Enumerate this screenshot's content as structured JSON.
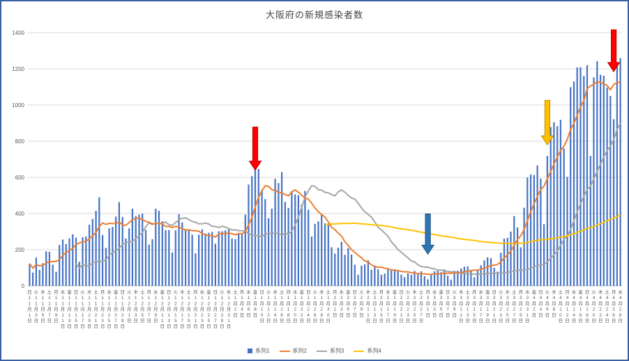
{
  "chart_data": {
    "type": "bar",
    "title": "大阪府の新規感染者数",
    "xlabel": "",
    "ylabel": "",
    "ylim": [
      0,
      1400
    ],
    "y_ticks": [
      0,
      200,
      400,
      600,
      800,
      1000,
      1200,
      1400
    ],
    "grid": "horizontal",
    "legend_position": "bottom",
    "axis_color": "#595959",
    "gridline_color": "#D9D9D9",
    "axisline_color": "#BFBFBF",
    "x": {
      "unit": "day",
      "tick_every": 2,
      "weekdays": [
        "日",
        "月",
        "火",
        "水",
        "木",
        "金",
        "土"
      ],
      "first_weekday_index": 0,
      "month_suffix": "月",
      "day_suffix": "日",
      "dates": [
        "11/1",
        "11/2",
        "11/3",
        "11/4",
        "11/5",
        "11/6",
        "11/7",
        "11/8",
        "11/9",
        "11/10",
        "11/11",
        "11/12",
        "11/13",
        "11/14",
        "11/15",
        "11/16",
        "11/17",
        "11/18",
        "11/19",
        "11/20",
        "11/21",
        "11/22",
        "11/23",
        "11/24",
        "11/25",
        "11/26",
        "11/27",
        "11/28",
        "11/29",
        "11/30",
        "12/1",
        "12/2",
        "12/3",
        "12/4",
        "12/5",
        "12/6",
        "12/7",
        "12/8",
        "12/9",
        "12/10",
        "12/11",
        "12/12",
        "12/13",
        "12/14",
        "12/15",
        "12/16",
        "12/17",
        "12/18",
        "12/19",
        "12/20",
        "12/21",
        "12/22",
        "12/23",
        "12/24",
        "12/25",
        "12/26",
        "12/27",
        "12/28",
        "12/29",
        "12/30",
        "12/31",
        "1/1",
        "1/2",
        "1/3",
        "1/4",
        "1/5",
        "1/6",
        "1/7",
        "1/8",
        "1/9",
        "1/10",
        "1/11",
        "1/12",
        "1/13",
        "1/14",
        "1/15",
        "1/16",
        "1/17",
        "1/18",
        "1/19",
        "1/20",
        "1/21",
        "1/22",
        "1/23",
        "1/24",
        "1/25",
        "1/26",
        "1/27",
        "1/28",
        "1/29",
        "1/30",
        "1/31",
        "2/1",
        "2/2",
        "2/3",
        "2/4",
        "2/5",
        "2/6",
        "2/7",
        "2/8",
        "2/9",
        "2/10",
        "2/11",
        "2/12",
        "2/13",
        "2/14",
        "2/15",
        "2/16",
        "2/17",
        "2/18",
        "2/19",
        "2/20",
        "2/21",
        "2/22",
        "2/23",
        "2/24",
        "2/25",
        "2/26",
        "2/27",
        "2/28",
        "3/1",
        "3/2",
        "3/3",
        "3/4",
        "3/5",
        "3/6",
        "3/7",
        "3/8",
        "3/9",
        "3/10",
        "3/11",
        "3/12",
        "3/13",
        "3/14",
        "3/15",
        "3/16",
        "3/17",
        "3/18",
        "3/19",
        "3/20",
        "3/21",
        "3/22",
        "3/23",
        "3/24",
        "3/25",
        "3/26",
        "3/27",
        "3/28",
        "3/29",
        "3/30",
        "3/31",
        "4/1",
        "4/2",
        "4/3",
        "4/4",
        "4/5",
        "4/6",
        "4/7",
        "4/8",
        "4/9",
        "4/10",
        "4/11",
        "4/12",
        "4/13",
        "4/14",
        "4/15",
        "4/16",
        "4/17",
        "4/18",
        "4/19",
        "4/20",
        "4/21",
        "4/22",
        "4/23",
        "4/24",
        "4/25",
        "4/26",
        "4/27",
        "4/28"
      ]
    },
    "series": [
      {
        "name": "系列1",
        "type": "bar",
        "color": "#4472C4",
        "values": [
          123,
          74,
          156,
          88,
          125,
          191,
          189,
          117,
          78,
          226,
          256,
          231,
          263,
          285,
          266,
          133,
          269,
          273,
          338,
          370,
          415,
          490,
          281,
          210,
          318,
          326,
          383,
          463,
          381,
          262,
          318,
          427,
          386,
          394,
          399,
          310,
          228,
          258,
          427,
          415,
          357,
          308,
          309,
          185,
          306,
          396,
          351,
          309,
          311,
          283,
          180,
          283,
          312,
          289,
          294,
          299,
          233,
          302,
          302,
          307,
          313,
          262,
          258,
          286,
          286,
          394,
          560,
          607,
          654,
          647,
          532,
          480,
          374,
          427,
          592,
          568,
          629,
          464,
          431,
          525,
          506,
          501,
          450,
          525,
          421,
          273,
          343,
          357,
          397,
          346,
          338,
          214,
          178,
          211,
          244,
          172,
          209,
          173,
          117,
          61,
          112,
          119,
          141,
          89,
          112,
          91,
          62,
          68,
          97,
          91,
          91,
          87,
          62,
          48,
          70,
          61,
          82,
          69,
          80,
          54,
          36,
          65,
          81,
          84,
          76,
          91,
          56,
          34,
          84,
          84,
          96,
          106,
          108,
          83,
          48,
          86,
          114,
          141,
          158,
          153,
          100,
          79,
          183,
          262,
          266,
          300,
          386,
          323,
          213,
          432,
          599,
          616,
          613,
          666,
          593,
          341,
          719,
          878,
          905,
          883,
          918,
          760,
          603,
          1099,
          1130,
          1208,
          1209,
          1161,
          1220,
          719,
          1153,
          1242,
          1167,
          1162,
          1097,
          1050,
          922,
          1230,
          1260
        ]
      },
      {
        "name": "系列2",
        "type": "line",
        "color": "#ED7D31",
        "derivation": "ma7"
      },
      {
        "name": "系列3",
        "type": "line",
        "color": "#A5A5A5",
        "derivation": "ma7_shift14"
      },
      {
        "name": "系列4",
        "type": "line",
        "color": "#FFC000",
        "derivation": "ma90"
      }
    ],
    "annotations": {
      "arrows": [
        {
          "name": "red-arrow-january-peak",
          "color": "#FF0000",
          "border": "#C00000",
          "day_index": 68,
          "tip_value": 640,
          "length": 62
        },
        {
          "name": "blue-arrow-march-trough",
          "color": "#2E75B6",
          "border": "#1F4E79",
          "day_index": 120,
          "tip_value": 175,
          "length": 58
        },
        {
          "name": "yellow-arrow-early-april",
          "color": "#FFC000",
          "border": "#BF9000",
          "day_index": 156,
          "tip_value": 780,
          "length": 64
        },
        {
          "name": "red-arrow-april-peak",
          "color": "#FF0000",
          "border": "#C00000",
          "day_index": 176,
          "tip_value": 1185,
          "length": 60
        }
      ]
    }
  }
}
